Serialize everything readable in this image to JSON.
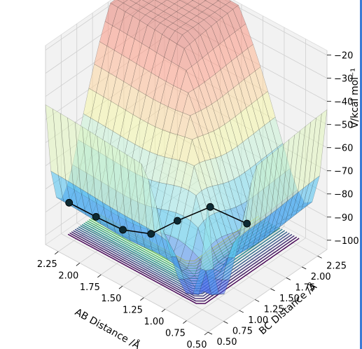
{
  "chart_data": {
    "type": "surface3d",
    "subtype": "potential energy surface with contour projection and reaction trajectory",
    "xlabel": "AB Distance /Å",
    "ylabel": "BC Distance /Å",
    "zlabel": "V/kcal mol⁻¹",
    "x_ticks": [
      "0.50",
      "0.75",
      "1.00",
      "1.25",
      "1.50",
      "1.75",
      "2.00",
      "2.25"
    ],
    "y_ticks": [
      "0.50",
      "0.75",
      "1.00",
      "1.25",
      "1.50",
      "1.75",
      "2.00",
      "2.25"
    ],
    "z_ticks": [
      "−100",
      "−90",
      "−80",
      "−70",
      "−60",
      "−50",
      "−40",
      "−30",
      "−20"
    ],
    "xlim": [
      0.5,
      2.4
    ],
    "ylim": [
      0.5,
      2.4
    ],
    "zlim": [
      -104,
      -18
    ],
    "z_values": [
      -100,
      -90,
      -80,
      -70,
      -60,
      -50,
      -40,
      -30,
      -20
    ],
    "colormap_surface": [
      "#3a0ca3",
      "#4361ee",
      "#4cc9f0",
      "#b8f2e6",
      "#f6f7a8",
      "#ffcf9e",
      "#ff9b85",
      "#e0786f"
    ],
    "colormap_contour": [
      "#440154",
      "#3b528b",
      "#21918c",
      "#5ec962",
      "#fde725"
    ],
    "trajectory": {
      "ab": [
        2.3,
        2.0,
        1.7,
        1.4,
        1.15,
        0.95,
        0.85
      ],
      "bc": [
        0.74,
        0.76,
        0.78,
        0.82,
        0.9,
        1.15,
        1.6
      ],
      "marker_color": "#0d2a33"
    },
    "grid": true,
    "pane_color": "#f2f2f2"
  }
}
